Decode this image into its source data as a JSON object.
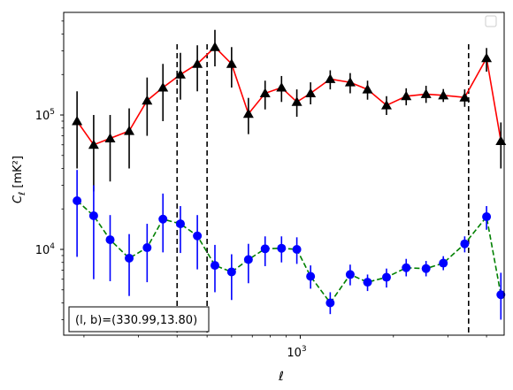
{
  "chart_data": {
    "type": "scatter",
    "title": "",
    "xlabel": "ℓ",
    "ylabel_main": "C",
    "ylabel_sub": "ℓ",
    "ylabel_unit": "  [mK²]",
    "xscale": "log",
    "yscale": "log",
    "xlim": [
      172,
      4560
    ],
    "ylim": [
      2300,
      580000
    ],
    "grid": false,
    "legend_placement": "top-right",
    "x_ticks": [
      {
        "value": 1000,
        "label": "10",
        "exp": "3"
      }
    ],
    "y_ticks": [
      {
        "value": 10000,
        "label": "10",
        "exp": "4"
      },
      {
        "value": 100000,
        "label": "10",
        "exp": "5"
      }
    ],
    "annotation": "(l, b)=(330.99,13.80)",
    "vlines": [
      {
        "x": 400
      },
      {
        "x": 500
      },
      {
        "x": 3500
      }
    ],
    "series": [
      {
        "color": "#ff0000",
        "marker": "triangle",
        "marker_color": "#000000",
        "errorbar_color": "#000000",
        "linestyle": "solid",
        "points": [
          {
            "x": 190,
            "y": 90000,
            "lo": 40000,
            "hi": 150000
          },
          {
            "x": 215,
            "y": 60000,
            "lo": 27000,
            "hi": 100000
          },
          {
            "x": 243,
            "y": 67000,
            "lo": 32000,
            "hi": 100000
          },
          {
            "x": 280,
            "y": 76000,
            "lo": 40000,
            "hi": 112000
          },
          {
            "x": 320,
            "y": 128000,
            "lo": 70000,
            "hi": 190000
          },
          {
            "x": 360,
            "y": 160000,
            "lo": 90000,
            "hi": 240000
          },
          {
            "x": 410,
            "y": 200000,
            "lo": 130000,
            "hi": 290000
          },
          {
            "x": 465,
            "y": 240000,
            "lo": 150000,
            "hi": 330000
          },
          {
            "x": 530,
            "y": 320000,
            "lo": 230000,
            "hi": 430000
          },
          {
            "x": 600,
            "y": 240000,
            "lo": 160000,
            "hi": 320000
          },
          {
            "x": 680,
            "y": 102000,
            "lo": 72000,
            "hi": 134000
          },
          {
            "x": 770,
            "y": 145000,
            "lo": 110000,
            "hi": 180000
          },
          {
            "x": 870,
            "y": 160000,
            "lo": 125000,
            "hi": 195000
          },
          {
            "x": 975,
            "y": 125000,
            "lo": 97000,
            "hi": 155000
          },
          {
            "x": 1080,
            "y": 145000,
            "lo": 120000,
            "hi": 175000
          },
          {
            "x": 1250,
            "y": 185000,
            "lo": 155000,
            "hi": 215000
          },
          {
            "x": 1450,
            "y": 175000,
            "lo": 145000,
            "hi": 205000
          },
          {
            "x": 1650,
            "y": 155000,
            "lo": 130000,
            "hi": 180000
          },
          {
            "x": 1900,
            "y": 118000,
            "lo": 100000,
            "hi": 138000
          },
          {
            "x": 2200,
            "y": 138000,
            "lo": 118000,
            "hi": 158000
          },
          {
            "x": 2550,
            "y": 143000,
            "lo": 123000,
            "hi": 165000
          },
          {
            "x": 2900,
            "y": 140000,
            "lo": 125000,
            "hi": 156000
          },
          {
            "x": 3400,
            "y": 135000,
            "lo": 115000,
            "hi": 155000
          },
          {
            "x": 4000,
            "y": 265000,
            "lo": 210000,
            "hi": 315000
          },
          {
            "x": 4450,
            "y": 64000,
            "lo": 40000,
            "hi": 88000
          }
        ]
      },
      {
        "color": "#008000",
        "marker": "circle",
        "marker_color": "#0000ff",
        "errorbar_color": "#0000ff",
        "linestyle": "dashed",
        "points": [
          {
            "x": 190,
            "y": 23000,
            "lo": 8800,
            "hi": 39000
          },
          {
            "x": 215,
            "y": 17800,
            "lo": 6000,
            "hi": 30000
          },
          {
            "x": 243,
            "y": 11800,
            "lo": 5800,
            "hi": 18000
          },
          {
            "x": 280,
            "y": 8600,
            "lo": 4500,
            "hi": 13000
          },
          {
            "x": 320,
            "y": 10300,
            "lo": 5700,
            "hi": 15500
          },
          {
            "x": 360,
            "y": 16800,
            "lo": 9500,
            "hi": 26000
          },
          {
            "x": 410,
            "y": 15500,
            "lo": 9400,
            "hi": 21000
          },
          {
            "x": 465,
            "y": 12600,
            "lo": 7100,
            "hi": 18000
          },
          {
            "x": 530,
            "y": 7600,
            "lo": 4800,
            "hi": 10800
          },
          {
            "x": 600,
            "y": 6800,
            "lo": 4200,
            "hi": 9200
          },
          {
            "x": 680,
            "y": 8400,
            "lo": 5600,
            "hi": 11000
          },
          {
            "x": 770,
            "y": 10100,
            "lo": 7500,
            "hi": 12500
          },
          {
            "x": 870,
            "y": 10200,
            "lo": 8000,
            "hi": 12500
          },
          {
            "x": 975,
            "y": 10000,
            "lo": 7800,
            "hi": 12300
          },
          {
            "x": 1080,
            "y": 6300,
            "lo": 5100,
            "hi": 7600
          },
          {
            "x": 1250,
            "y": 4000,
            "lo": 3300,
            "hi": 4800
          },
          {
            "x": 1450,
            "y": 6500,
            "lo": 5400,
            "hi": 7700
          },
          {
            "x": 1650,
            "y": 5700,
            "lo": 4900,
            "hi": 6500
          },
          {
            "x": 1900,
            "y": 6200,
            "lo": 5200,
            "hi": 7200
          },
          {
            "x": 2200,
            "y": 7300,
            "lo": 6300,
            "hi": 8500
          },
          {
            "x": 2550,
            "y": 7200,
            "lo": 6300,
            "hi": 8200
          },
          {
            "x": 2900,
            "y": 7900,
            "lo": 7000,
            "hi": 8900
          },
          {
            "x": 3400,
            "y": 11000,
            "lo": 9500,
            "hi": 12500
          },
          {
            "x": 4000,
            "y": 17500,
            "lo": 14000,
            "hi": 21000
          },
          {
            "x": 4450,
            "y": 4600,
            "lo": 3000,
            "hi": 6700
          }
        ]
      }
    ]
  }
}
